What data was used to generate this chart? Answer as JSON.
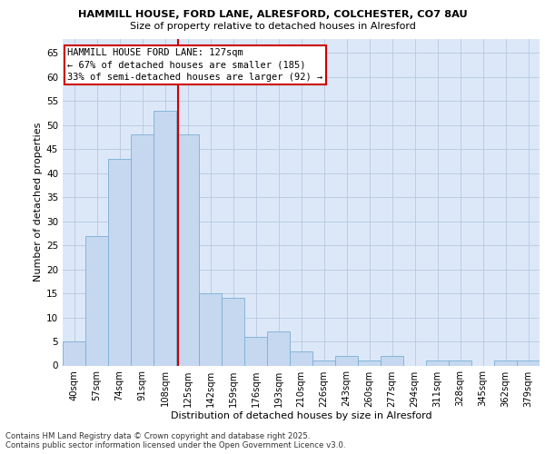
{
  "title1": "HAMMILL HOUSE, FORD LANE, ALRESFORD, COLCHESTER, CO7 8AU",
  "title2": "Size of property relative to detached houses in Alresford",
  "xlabel": "Distribution of detached houses by size in Alresford",
  "ylabel": "Number of detached properties",
  "categories": [
    "40sqm",
    "57sqm",
    "74sqm",
    "91sqm",
    "108sqm",
    "125sqm",
    "142sqm",
    "159sqm",
    "176sqm",
    "193sqm",
    "210sqm",
    "226sqm",
    "243sqm",
    "260sqm",
    "277sqm",
    "294sqm",
    "311sqm",
    "328sqm",
    "345sqm",
    "362sqm",
    "379sqm"
  ],
  "values": [
    5,
    27,
    43,
    48,
    53,
    48,
    15,
    14,
    6,
    7,
    3,
    1,
    2,
    1,
    2,
    0,
    1,
    1,
    0,
    1,
    1
  ],
  "bar_color": "#c5d8f0",
  "bar_edge_color": "#7bafd4",
  "grid_color": "#b8c8de",
  "bg_color": "#dce8f8",
  "fig_bg_color": "#ffffff",
  "annotation_text": "HAMMILL HOUSE FORD LANE: 127sqm\n← 67% of detached houses are smaller (185)\n33% of semi-detached houses are larger (92) →",
  "annotation_box_color": "#ffffff",
  "annotation_border_color": "#cc0000",
  "vline_color": "#cc0000",
  "vline_x": 4.58,
  "ylim": [
    0,
    68
  ],
  "yticks": [
    0,
    5,
    10,
    15,
    20,
    25,
    30,
    35,
    40,
    45,
    50,
    55,
    60,
    65
  ],
  "footer": "Contains HM Land Registry data © Crown copyright and database right 2025.\nContains public sector information licensed under the Open Government Licence v3.0.",
  "figsize": [
    6.0,
    5.0
  ],
  "dpi": 100
}
